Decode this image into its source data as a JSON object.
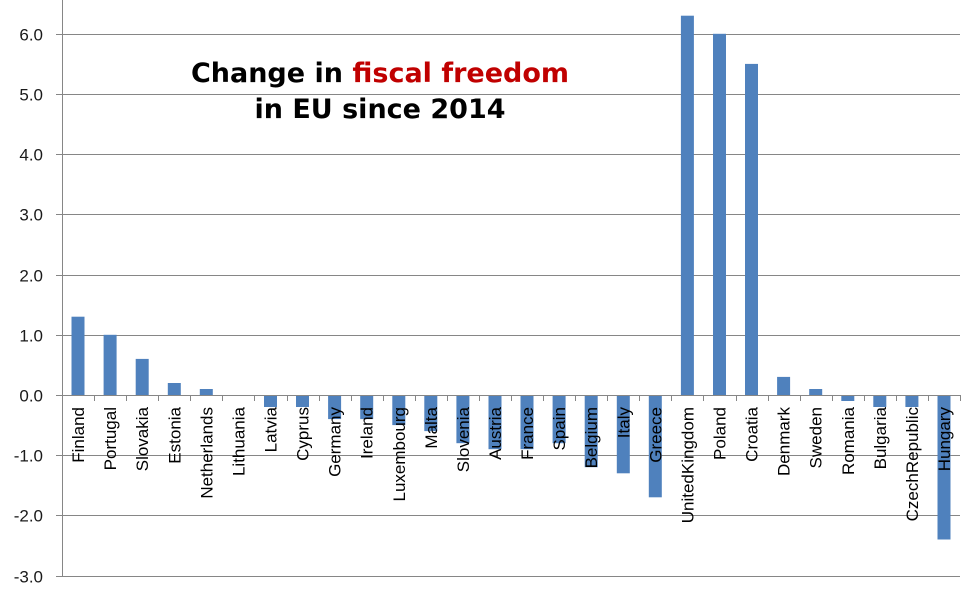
{
  "chart_data": {
    "type": "bar",
    "title_parts": [
      "Change in ",
      "fiscal freedom",
      "in EU since 2014"
    ],
    "title_highlight_color": "#c00000",
    "xlabel": "",
    "ylabel": "",
    "ylim": [
      -3.0,
      6.5
    ],
    "yticks": [
      -3.0,
      -2.0,
      -1.0,
      0.0,
      1.0,
      2.0,
      3.0,
      4.0,
      5.0,
      6.0
    ],
    "ytick_labels": [
      "-3.0",
      "-2.0",
      "-1.0",
      "0.0",
      "1.0",
      "2.0",
      "3.0",
      "4.0",
      "5.0",
      "6.0"
    ],
    "grid": true,
    "bar_color": "#4f81bd",
    "categories": [
      "Finland",
      "Portugal",
      "Slovakia",
      "Estonia",
      "Netherlands",
      "Lithuania",
      "Latvia",
      "Cyprus",
      "Germany",
      "Ireland",
      "Luxembourg",
      "Malta",
      "Slovenia",
      "Austria",
      "France",
      "Spain",
      "Belgium",
      "Italy",
      "Greece",
      "UnitedKingdom",
      "Poland",
      "Croatia",
      "Denmark",
      "Sweden",
      "Romania",
      "Bulgaria",
      "CzechRepublic",
      "Hungary"
    ],
    "values": [
      1.3,
      1.0,
      0.6,
      0.2,
      0.1,
      0.0,
      -0.2,
      -0.2,
      -0.4,
      -0.4,
      -0.5,
      -0.6,
      -0.8,
      -0.9,
      -0.9,
      -0.8,
      -1.2,
      -1.3,
      -1.7,
      6.3,
      6.0,
      5.5,
      0.3,
      0.1,
      -0.1,
      -0.2,
      -0.2,
      -2.4
    ]
  }
}
